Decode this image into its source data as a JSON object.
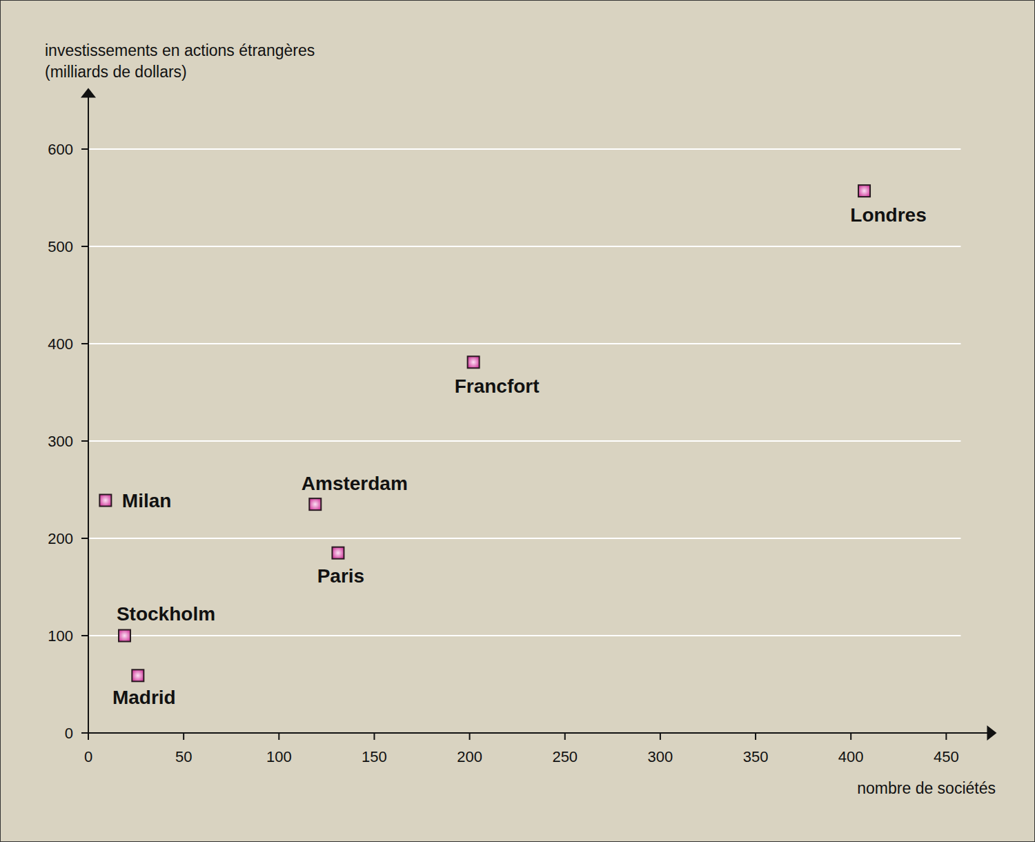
{
  "chart_data": {
    "type": "scatter",
    "y_label": [
      "investissements en actions étrangères",
      "(milliards de dollars)"
    ],
    "x_label": "nombre de sociétés",
    "labels": [
      "Londres",
      "Francfort",
      "Amsterdam",
      "Paris",
      "Milan",
      "Stockholm",
      "Madrid"
    ],
    "x": [
      407,
      202,
      119,
      131,
      9,
      19,
      26
    ],
    "values": [
      557,
      381,
      235,
      185,
      239,
      100,
      59
    ],
    "color": "#d0369a",
    "marker": "square",
    "xlim": [
      0,
      475
    ],
    "xticks": [
      0,
      50,
      100,
      150,
      200,
      250,
      300,
      350,
      400,
      450
    ],
    "ylim": [
      0,
      660
    ],
    "yticks": [
      0,
      100,
      200,
      300,
      400,
      500,
      600
    ],
    "grid": true
  }
}
